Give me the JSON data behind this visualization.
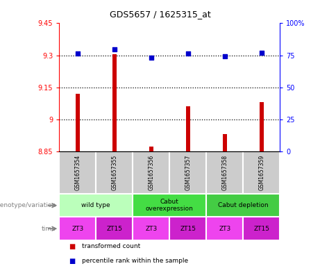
{
  "title": "GDS5657 / 1625315_at",
  "samples": [
    "GSM1657354",
    "GSM1657355",
    "GSM1657356",
    "GSM1657357",
    "GSM1657358",
    "GSM1657359"
  ],
  "transformed_count": [
    9.12,
    9.305,
    8.872,
    9.06,
    8.93,
    9.08
  ],
  "percentile_rank": [
    76.5,
    79.5,
    73.0,
    76.5,
    74.5,
    77.0
  ],
  "ylim_left": [
    8.85,
    9.45
  ],
  "ylim_right": [
    0,
    100
  ],
  "yticks_left": [
    8.85,
    9.0,
    9.15,
    9.3,
    9.45
  ],
  "yticks_right": [
    0,
    25,
    50,
    75,
    100
  ],
  "ytick_labels_left": [
    "8.85",
    "9",
    "9.15",
    "9.3",
    "9.45"
  ],
  "ytick_labels_right": [
    "0",
    "25",
    "50",
    "75",
    "100%"
  ],
  "hlines": [
    9.0,
    9.15,
    9.3
  ],
  "bar_color": "#cc0000",
  "scatter_color": "#0000cc",
  "geno_labels": [
    "wild type",
    "Cabut\noverexpression",
    "Cabut depletion"
  ],
  "geno_ranges": [
    [
      0,
      2
    ],
    [
      2,
      4
    ],
    [
      4,
      6
    ]
  ],
  "geno_colors": [
    "#bbffbb",
    "#44dd44",
    "#44cc44"
  ],
  "time_labels": [
    "ZT3",
    "ZT15",
    "ZT3",
    "ZT15",
    "ZT3",
    "ZT15"
  ],
  "time_color_zt3": "#ee44ee",
  "time_color_zt15": "#cc22cc",
  "legend_red_label": "transformed count",
  "legend_blue_label": "percentile rank within the sample",
  "row_label_genotype": "genotype/variation",
  "row_label_time": "time",
  "bg_color_sample": "#cccccc"
}
